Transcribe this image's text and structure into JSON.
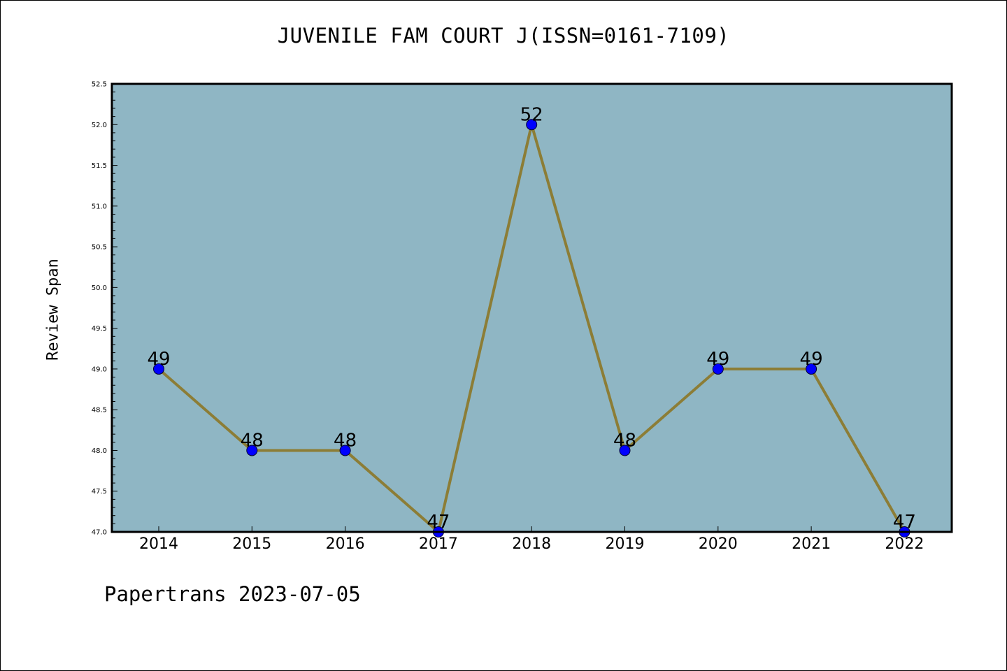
{
  "chart_data": {
    "type": "line",
    "title": "JUVENILE FAM COURT J(ISSN=0161-7109)",
    "xlabel": "",
    "ylabel": "Review Span",
    "categories": [
      "2014",
      "2015",
      "2016",
      "2017",
      "2018",
      "2019",
      "2020",
      "2021",
      "2022"
    ],
    "series": [
      {
        "values": [
          49,
          48,
          48,
          47,
          52,
          48,
          49,
          49,
          47
        ]
      }
    ],
    "data_labels": [
      "49",
      "48",
      "48",
      "47",
      "52",
      "48",
      "49",
      "49",
      "47"
    ],
    "ylim": [
      47.0,
      52.5
    ],
    "yticks": [
      "47.0",
      "47.5",
      "48.0",
      "48.5",
      "49.0",
      "49.5",
      "50.0",
      "50.5",
      "51.0",
      "51.5",
      "52.0",
      "52.5"
    ],
    "grid": false,
    "colors": {
      "plot_background": "#8fb6c4",
      "line": "#8c7d36",
      "marker": "#0000ff"
    }
  },
  "footer": {
    "text": "Papertrans 2023-07-05"
  }
}
